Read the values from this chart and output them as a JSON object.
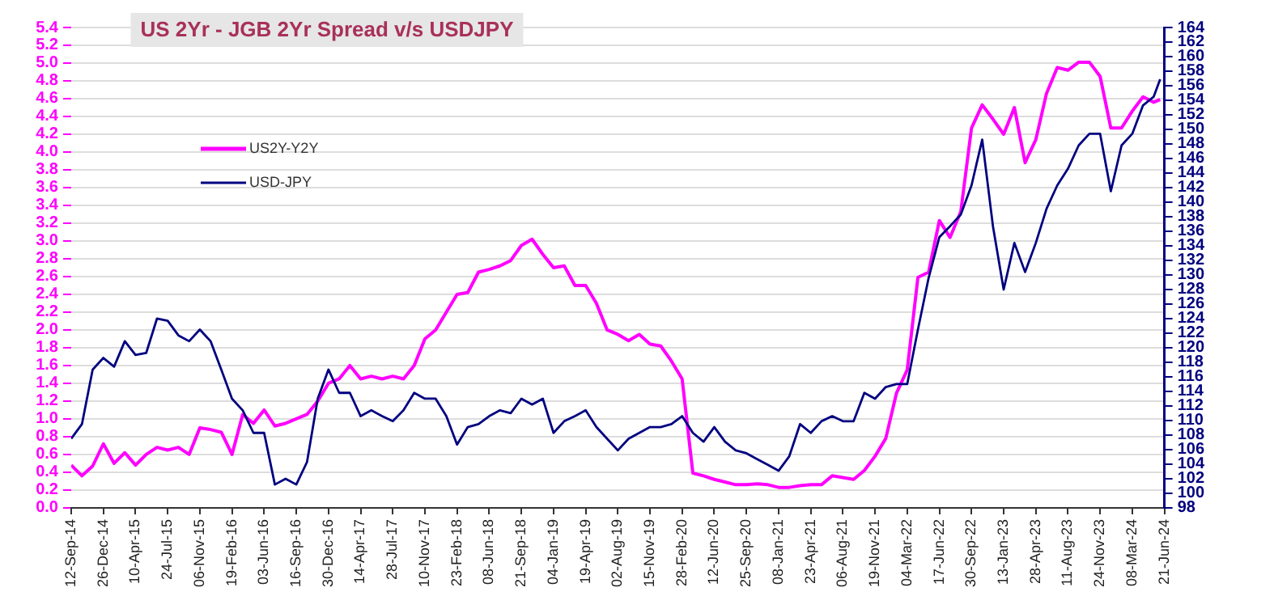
{
  "chart_data": {
    "type": "line",
    "title": "US 2Yr - JGB 2Yr Spread v/s USDJPY",
    "x": [
      "2014-09-12",
      "2014-10-17",
      "2014-11-21",
      "2014-12-26",
      "2015-01-30",
      "2015-03-06",
      "2015-04-10",
      "2015-05-15",
      "2015-06-19",
      "2015-07-24",
      "2015-08-28",
      "2015-10-02",
      "2015-11-06",
      "2015-12-11",
      "2016-01-15",
      "2016-02-19",
      "2016-03-25",
      "2016-04-29",
      "2016-06-03",
      "2016-07-08",
      "2016-08-12",
      "2016-09-16",
      "2016-10-21",
      "2016-11-25",
      "2016-12-30",
      "2017-02-03",
      "2017-03-10",
      "2017-04-14",
      "2017-05-19",
      "2017-06-23",
      "2017-07-28",
      "2017-09-01",
      "2017-10-06",
      "2017-11-10",
      "2017-12-15",
      "2018-01-19",
      "2018-02-23",
      "2018-03-30",
      "2018-05-04",
      "2018-06-08",
      "2018-07-13",
      "2018-08-17",
      "2018-09-21",
      "2018-10-26",
      "2018-11-30",
      "2019-01-04",
      "2019-02-08",
      "2019-03-15",
      "2019-04-19",
      "2019-05-24",
      "2019-06-28",
      "2019-08-02",
      "2019-09-06",
      "2019-10-11",
      "2019-11-15",
      "2019-12-20",
      "2020-01-24",
      "2020-02-28",
      "2020-04-03",
      "2020-05-08",
      "2020-06-12",
      "2020-07-17",
      "2020-08-21",
      "2020-09-25",
      "2020-10-30",
      "2020-12-04",
      "2021-01-08",
      "2021-02-12",
      "2021-03-19",
      "2021-04-23",
      "2021-05-28",
      "2021-07-02",
      "2021-08-06",
      "2021-09-10",
      "2021-10-15",
      "2021-11-19",
      "2021-12-24",
      "2022-01-28",
      "2022-03-04",
      "2022-04-08",
      "2022-05-13",
      "2022-06-17",
      "2022-07-22",
      "2022-08-26",
      "2022-09-30",
      "2022-11-04",
      "2022-12-09",
      "2023-01-13",
      "2023-02-17",
      "2023-03-24",
      "2023-04-28",
      "2023-06-02",
      "2023-07-07",
      "2023-08-11",
      "2023-09-15",
      "2023-10-20",
      "2023-11-24",
      "2023-12-29",
      "2024-02-02",
      "2024-03-08",
      "2024-04-12",
      "2024-05-17",
      "2024-06-07"
    ],
    "series": [
      {
        "name": "US2Y-Y2Y",
        "color": "#ff00ff",
        "values": [
          0.48,
          0.36,
          0.47,
          0.72,
          0.5,
          0.62,
          0.48,
          0.6,
          0.68,
          0.65,
          0.68,
          0.6,
          0.9,
          0.88,
          0.85,
          0.6,
          1.05,
          0.95,
          1.1,
          0.92,
          0.95,
          1.0,
          1.05,
          1.2,
          1.4,
          1.45,
          1.6,
          1.45,
          1.48,
          1.45,
          1.48,
          1.45,
          1.6,
          1.9,
          2.0,
          2.2,
          2.4,
          2.42,
          2.65,
          2.68,
          2.72,
          2.78,
          2.95,
          3.02,
          2.85,
          2.7,
          2.72,
          2.5,
          2.5,
          2.3,
          2.0,
          1.95,
          1.88,
          1.95,
          1.84,
          1.82,
          1.65,
          1.45,
          0.39,
          0.36,
          0.32,
          0.29,
          0.26,
          0.26,
          0.27,
          0.26,
          0.23,
          0.23,
          0.25,
          0.26,
          0.26,
          0.36,
          0.34,
          0.32,
          0.42,
          0.58,
          0.78,
          1.29,
          1.55,
          2.59,
          2.65,
          3.23,
          3.04,
          3.33,
          4.27,
          4.53,
          4.37,
          4.2,
          4.5,
          3.88,
          4.14,
          4.66,
          4.95,
          4.92,
          5.01,
          5.01,
          4.85,
          4.27,
          4.27,
          4.46,
          4.62,
          4.56,
          4.59
        ]
      },
      {
        "name": "USD-JPY",
        "color": "#000080",
        "axis": "y2",
        "values": [
          107.5,
          109.5,
          117,
          118.6,
          117.4,
          120.9,
          119,
          119.3,
          124,
          123.7,
          121.7,
          120.9,
          122.5,
          120.9,
          117,
          113,
          111.4,
          108.3,
          108.3,
          101.2,
          102,
          101.2,
          104.3,
          113,
          117,
          113.8,
          113.8,
          110.6,
          111.4,
          110.6,
          109.9,
          111.4,
          113.8,
          113,
          113,
          110.6,
          106.7,
          109.1,
          109.5,
          110.6,
          111.4,
          111,
          113,
          112.2,
          113,
          108.3,
          109.9,
          110.6,
          111.4,
          109.1,
          107.5,
          105.9,
          107.5,
          108.3,
          109.1,
          109.1,
          109.5,
          110.6,
          108.3,
          107.1,
          109.1,
          107.1,
          105.9,
          105.5,
          104.7,
          103.9,
          103.1,
          105.1,
          109.5,
          108.3,
          109.9,
          110.6,
          109.9,
          109.9,
          113.8,
          113,
          114.6,
          115,
          115,
          122.5,
          129.6,
          135.2,
          136.7,
          138.3,
          142.3,
          148.6,
          136.7,
          128,
          134.4,
          130.4,
          134.4,
          139.1,
          142.3,
          144.6,
          147.8,
          149.4,
          149.4,
          141.5,
          147.8,
          149.4,
          153.3,
          154.5,
          156.9
        ]
      }
    ],
    "xlim": [
      "2014-09-12",
      "2024-06-21"
    ],
    "xticks": [
      {
        "value": "2014-09-12",
        "label": "12-Sep-14"
      },
      {
        "value": "2014-12-26",
        "label": "26-Dec-14"
      },
      {
        "value": "2015-04-10",
        "label": "10-Apr-15"
      },
      {
        "value": "2015-07-24",
        "label": "24-Jul-15"
      },
      {
        "value": "2015-11-06",
        "label": "06-Nov-15"
      },
      {
        "value": "2016-02-19",
        "label": "19-Feb-16"
      },
      {
        "value": "2016-06-03",
        "label": "03-Jun-16"
      },
      {
        "value": "2016-09-16",
        "label": "16-Sep-16"
      },
      {
        "value": "2016-12-30",
        "label": "30-Dec-16"
      },
      {
        "value": "2017-04-14",
        "label": "14-Apr-17"
      },
      {
        "value": "2017-07-28",
        "label": "28-Jul-17"
      },
      {
        "value": "2017-11-10",
        "label": "10-Nov-17"
      },
      {
        "value": "2018-02-23",
        "label": "23-Feb-18"
      },
      {
        "value": "2018-06-08",
        "label": "08-Jun-18"
      },
      {
        "value": "2018-09-21",
        "label": "21-Sep-18"
      },
      {
        "value": "2019-01-04",
        "label": "04-Jan-19"
      },
      {
        "value": "2019-04-19",
        "label": "19-Apr-19"
      },
      {
        "value": "2019-08-02",
        "label": "02-Aug-19"
      },
      {
        "value": "2019-11-15",
        "label": "15-Nov-19"
      },
      {
        "value": "2020-02-28",
        "label": "28-Feb-20"
      },
      {
        "value": "2020-06-12",
        "label": "12-Jun-20"
      },
      {
        "value": "2020-09-25",
        "label": "25-Sep-20"
      },
      {
        "value": "2021-01-08",
        "label": "08-Jan-21"
      },
      {
        "value": "2021-04-23",
        "label": "23-Apr-21"
      },
      {
        "value": "2021-08-06",
        "label": "06-Aug-21"
      },
      {
        "value": "2021-11-19",
        "label": "19-Nov-21"
      },
      {
        "value": "2022-03-04",
        "label": "04-Mar-22"
      },
      {
        "value": "2022-06-17",
        "label": "17-Jun-22"
      },
      {
        "value": "2022-09-30",
        "label": "30-Sep-22"
      },
      {
        "value": "2023-01-13",
        "label": "13-Jan-23"
      },
      {
        "value": "2023-04-28",
        "label": "28-Apr-23"
      },
      {
        "value": "2023-08-11",
        "label": "11-Aug-23"
      },
      {
        "value": "2023-11-24",
        "label": "24-Nov-23"
      },
      {
        "value": "2024-03-08",
        "label": "08-Mar-24"
      },
      {
        "value": "2024-06-21",
        "label": "21-Jun-24"
      }
    ],
    "ylim": [
      0,
      5.4
    ],
    "yticks": [
      {
        "value": 0,
        "label": "0.0"
      },
      0.2,
      0.4,
      0.6,
      0.8,
      {
        "value": 1,
        "label": "1.0"
      },
      1.2,
      1.4,
      1.6,
      1.8,
      {
        "value": 2,
        "label": "2.0"
      },
      2.2,
      2.4,
      2.6,
      2.8,
      {
        "value": 3,
        "label": "3.0"
      },
      3.2,
      3.4,
      3.6,
      3.8,
      {
        "value": 4,
        "label": "4.0"
      },
      4.2,
      4.4,
      4.6,
      4.8,
      {
        "value": 5,
        "label": "5.0"
      },
      5.2,
      5.4
    ],
    "y2lim": [
      98,
      164
    ],
    "y2ticks": [
      98,
      100,
      102,
      104,
      106,
      108,
      110,
      112,
      114,
      116,
      118,
      120,
      122,
      124,
      126,
      128,
      130,
      132,
      134,
      136,
      138,
      140,
      142,
      144,
      146,
      148,
      150,
      152,
      154,
      156,
      158,
      160,
      162,
      164
    ],
    "grid": "y",
    "legend": "top left",
    "marker": "none",
    "line_style": "solid"
  }
}
